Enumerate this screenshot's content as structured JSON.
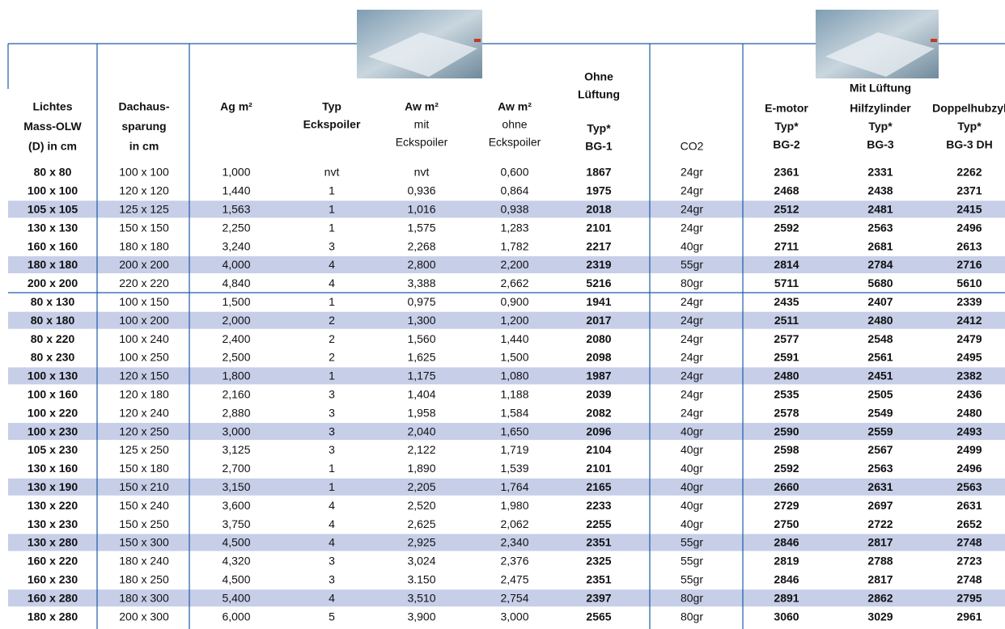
{
  "header": {
    "groups": [
      [
        "Ohne",
        "Lüftung"
      ],
      [
        "Mit Lüftung"
      ]
    ],
    "columns": [
      [
        "Lichtes",
        "Mass-OLW",
        "(D) in cm"
      ],
      [
        "Dachaus-",
        "sparung",
        "in cm"
      ],
      [
        "Ag m²"
      ],
      [
        "Typ",
        "Eckspoiler"
      ],
      [
        "Aw m²",
        "mit",
        "Eckspoiler"
      ],
      [
        "Aw m²",
        "ohne",
        "Eckspoiler"
      ],
      [
        "Typ*",
        "BG-1"
      ],
      [
        "CO2"
      ],
      [
        "E-motor",
        "Typ*",
        "BG-2"
      ],
      [
        "Hilfzylinder",
        "Typ*",
        "BG-3"
      ],
      [
        "Doppelhubzyl",
        "Typ*",
        "BG-3 DH"
      ]
    ]
  },
  "table": {
    "rows": [
      [
        "80 x 80",
        "100 x 100",
        "1,000",
        "nvt",
        "nvt",
        "0,600",
        "1867",
        "24gr",
        "2361",
        "2331",
        "2262"
      ],
      [
        "100 x 100",
        "120 x 120",
        "1,440",
        "1",
        "0,936",
        "0,864",
        "1975",
        "24gr",
        "2468",
        "2438",
        "2371"
      ],
      [
        "105 x 105",
        "125 x 125",
        "1,563",
        "1",
        "1,016",
        "0,938",
        "2018",
        "24gr",
        "2512",
        "2481",
        "2415"
      ],
      [
        "130 x 130",
        "150 x 150",
        "2,250",
        "1",
        "1,575",
        "1,283",
        "2101",
        "24gr",
        "2592",
        "2563",
        "2496"
      ],
      [
        "160 x 160",
        "180 x 180",
        "3,240",
        "3",
        "2,268",
        "1,782",
        "2217",
        "40gr",
        "2711",
        "2681",
        "2613"
      ],
      [
        "180 x 180",
        "200 x 200",
        "4,000",
        "4",
        "2,800",
        "2,200",
        "2319",
        "55gr",
        "2814",
        "2784",
        "2716"
      ],
      [
        "200 x 200",
        "220 x 220",
        "4,840",
        "4",
        "3,388",
        "2,662",
        "5216",
        "80gr",
        "5711",
        "5680",
        "5610"
      ],
      [
        "80 x 130",
        "100 x 150",
        "1,500",
        "1",
        "0,975",
        "0,900",
        "1941",
        "24gr",
        "2435",
        "2407",
        "2339"
      ],
      [
        "80 x 180",
        "100 x 200",
        "2,000",
        "2",
        "1,300",
        "1,200",
        "2017",
        "24gr",
        "2511",
        "2480",
        "2412"
      ],
      [
        "80 x 220",
        "100 x 240",
        "2,400",
        "2",
        "1,560",
        "1,440",
        "2080",
        "24gr",
        "2577",
        "2548",
        "2479"
      ],
      [
        "80 x 230",
        "100 x 250",
        "2,500",
        "2",
        "1,625",
        "1,500",
        "2098",
        "24gr",
        "2591",
        "2561",
        "2495"
      ],
      [
        "100 x 130",
        "120 x 150",
        "1,800",
        "1",
        "1,175",
        "1,080",
        "1987",
        "24gr",
        "2480",
        "2451",
        "2382"
      ],
      [
        "100 x 160",
        "120 x 180",
        "2,160",
        "3",
        "1,404",
        "1,188",
        "2039",
        "24gr",
        "2535",
        "2505",
        "2436"
      ],
      [
        "100 x 220",
        "120 x 240",
        "2,880",
        "3",
        "1,958",
        "1,584",
        "2082",
        "24gr",
        "2578",
        "2549",
        "2480"
      ],
      [
        "100 x 230",
        "120 x 250",
        "3,000",
        "3",
        "2,040",
        "1,650",
        "2096",
        "40gr",
        "2590",
        "2559",
        "2493"
      ],
      [
        "105 x 230",
        "125 x 250",
        "3,125",
        "3",
        "2,122",
        "1,719",
        "2104",
        "40gr",
        "2598",
        "2567",
        "2499"
      ],
      [
        "130 x 160",
        "150 x 180",
        "2,700",
        "1",
        "1,890",
        "1,539",
        "2101",
        "40gr",
        "2592",
        "2563",
        "2496"
      ],
      [
        "130 x 190",
        "150 x 210",
        "3,150",
        "1",
        "2,205",
        "1,764",
        "2165",
        "40gr",
        "2660",
        "2631",
        "2563"
      ],
      [
        "130 x 220",
        "150 x 240",
        "3,600",
        "4",
        "2,520",
        "1,980",
        "2233",
        "40gr",
        "2729",
        "2697",
        "2631"
      ],
      [
        "130 x 230",
        "150 x 250",
        "3,750",
        "4",
        "2,625",
        "2,062",
        "2255",
        "40gr",
        "2750",
        "2722",
        "2652"
      ],
      [
        "130 x 280",
        "150 x 300",
        "4,500",
        "4",
        "2,925",
        "2,340",
        "2351",
        "55gr",
        "2846",
        "2817",
        "2748"
      ],
      [
        "160 x 220",
        "180 x 240",
        "4,320",
        "3",
        "3,024",
        "2,376",
        "2325",
        "55gr",
        "2819",
        "2788",
        "2723"
      ],
      [
        "160 x 230",
        "180 x 250",
        "4,500",
        "3",
        "3.150",
        "2,475",
        "2351",
        "55gr",
        "2846",
        "2817",
        "2748"
      ],
      [
        "160 x 280",
        "180 x 300",
        "5,400",
        "4",
        "3,510",
        "2,754",
        "2397",
        "80gr",
        "2891",
        "2862",
        "2795"
      ],
      [
        "180 x 280",
        "200 x 300",
        "6,000",
        "5",
        "3,900",
        "3,000",
        "2565",
        "80gr",
        "3060",
        "3029",
        "2961"
      ]
    ]
  }
}
